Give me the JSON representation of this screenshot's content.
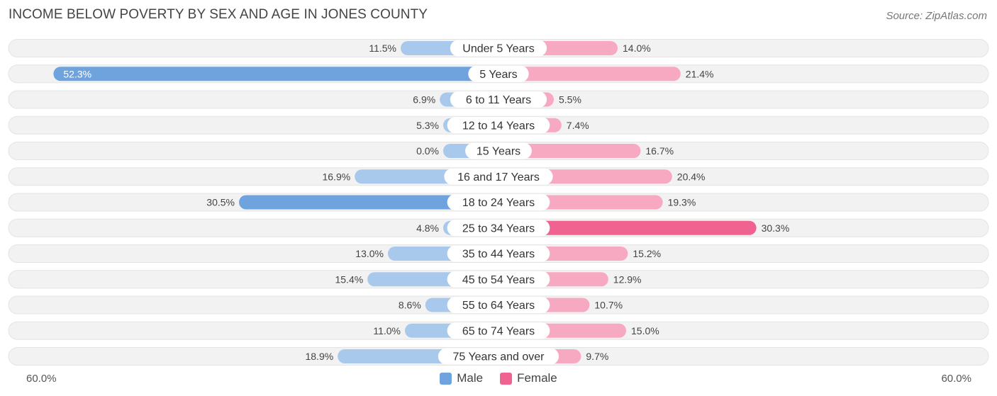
{
  "title": "INCOME BELOW POVERTY BY SEX AND AGE IN JONES COUNTY",
  "source": "Source: ZipAtlas.com",
  "colors": {
    "male": "#6fa3dd",
    "male_light": "#a9c9ec",
    "female": "#f0628f",
    "female_light": "#f7a9c2",
    "row_bg": "#f2f2f2"
  },
  "legend": {
    "male_label": "Male",
    "female_label": "Female"
  },
  "axis": {
    "left_label": "60.0%",
    "right_label": "60.0%"
  },
  "chart_data": {
    "type": "bar",
    "orientation": "horizontal-diverging",
    "title": "INCOME BELOW POVERTY BY SEX AND AGE IN JONES COUNTY",
    "categories": [
      "Under 5 Years",
      "5 Years",
      "6 to 11 Years",
      "12 to 14 Years",
      "15 Years",
      "16 and 17 Years",
      "18 to 24 Years",
      "25 to 34 Years",
      "35 to 44 Years",
      "45 to 54 Years",
      "55 to 64 Years",
      "65 to 74 Years",
      "75 Years and over"
    ],
    "series": [
      {
        "name": "Male",
        "values": [
          11.5,
          52.3,
          6.9,
          5.3,
          0.0,
          16.9,
          30.5,
          4.8,
          13.0,
          15.4,
          8.6,
          11.0,
          18.9
        ],
        "labels": [
          "11.5%",
          "52.3%",
          "6.9%",
          "5.3%",
          "0.0%",
          "16.9%",
          "30.5%",
          "4.8%",
          "13.0%",
          "15.4%",
          "8.6%",
          "11.0%",
          "18.9%"
        ]
      },
      {
        "name": "Female",
        "values": [
          14.0,
          21.4,
          5.5,
          7.4,
          16.7,
          20.4,
          19.3,
          30.3,
          15.2,
          12.9,
          10.7,
          15.0,
          9.7
        ],
        "labels": [
          "14.0%",
          "21.4%",
          "5.5%",
          "7.4%",
          "16.7%",
          "20.4%",
          "19.3%",
          "30.3%",
          "15.2%",
          "12.9%",
          "10.7%",
          "15.0%",
          "9.7%"
        ]
      }
    ],
    "xlim": [
      -60,
      60
    ],
    "legend_position": "bottom-center"
  }
}
